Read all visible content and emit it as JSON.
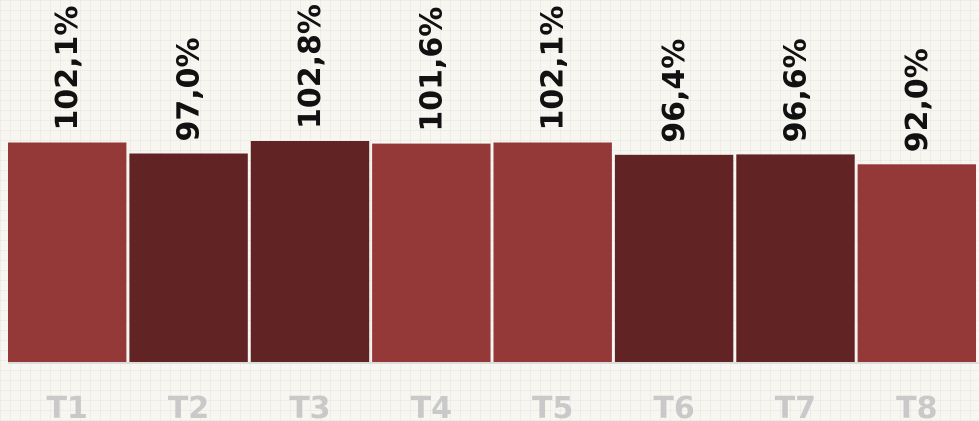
{
  "chart_data": {
    "type": "bar",
    "categories": [
      "T1",
      "T2",
      "T3",
      "T4",
      "T5",
      "T6",
      "T7",
      "T8"
    ],
    "values": [
      102.1,
      97.0,
      102.8,
      101.6,
      102.1,
      96.4,
      96.6,
      92.0
    ],
    "data_labels": [
      "102,1%",
      "97,0%",
      "102,8%",
      "101,6%",
      "102,1%",
      "96,4%",
      "96,6%",
      "92,0%"
    ],
    "bar_colors": [
      "#943838",
      "#612324",
      "#612324",
      "#943838",
      "#943838",
      "#612324",
      "#612324",
      "#943838"
    ],
    "unit": "%",
    "ylim": [
      0,
      102.8
    ],
    "grid": true,
    "legend": "none",
    "title": "",
    "xlabel": "",
    "ylabel": ""
  }
}
